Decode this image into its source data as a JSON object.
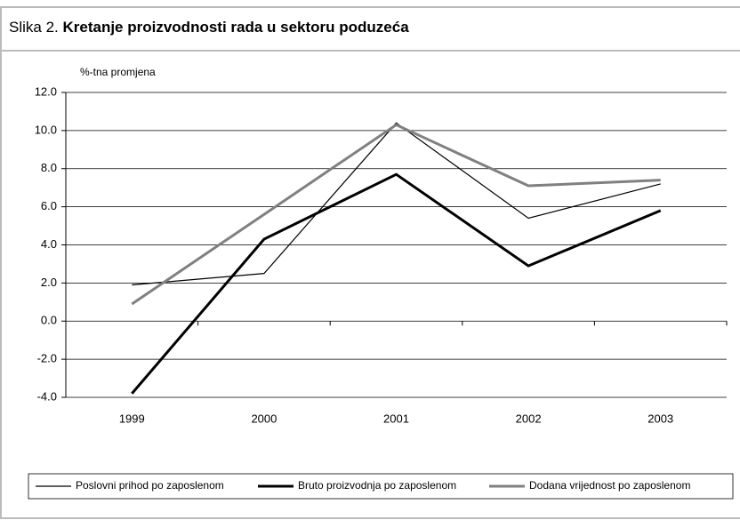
{
  "chart_data": {
    "type": "line",
    "figure_label": "Slika 2.",
    "title": "Kretanje proizvodnosti rada u sektoru poduzeća",
    "y_label": "%-tna promjena",
    "categories": [
      "1999",
      "2000",
      "2001",
      "2002",
      "2003"
    ],
    "series": [
      {
        "name": "Poslovni prihod po zaposlenom",
        "color": "#000000",
        "width": 1.2,
        "values": [
          1.9,
          2.5,
          10.4,
          5.4,
          7.2
        ]
      },
      {
        "name": "Bruto proizvodnja po zaposlenom",
        "color": "#000000",
        "width": 3,
        "values": [
          -3.8,
          4.3,
          7.7,
          2.9,
          5.8
        ]
      },
      {
        "name": "Dodana vrijednost po zaposlenom",
        "color": "#808080",
        "width": 3,
        "values": [
          0.9,
          5.6,
          10.3,
          7.1,
          7.4
        ]
      }
    ],
    "ylim": [
      -4,
      12
    ],
    "yticks": [
      {
        "value": -4,
        "label": "-4.0"
      },
      {
        "value": -2,
        "label": "-2.0"
      },
      {
        "value": 0,
        "label": "0.0"
      },
      {
        "value": 2,
        "label": "2.0"
      },
      {
        "value": 4,
        "label": "4.0"
      },
      {
        "value": 6,
        "label": "6.0"
      },
      {
        "value": 8,
        "label": "8.0"
      },
      {
        "value": 10,
        "label": "10.0"
      },
      {
        "value": 12,
        "label": "12.0"
      }
    ],
    "grid": true,
    "legend": "bottom"
  }
}
